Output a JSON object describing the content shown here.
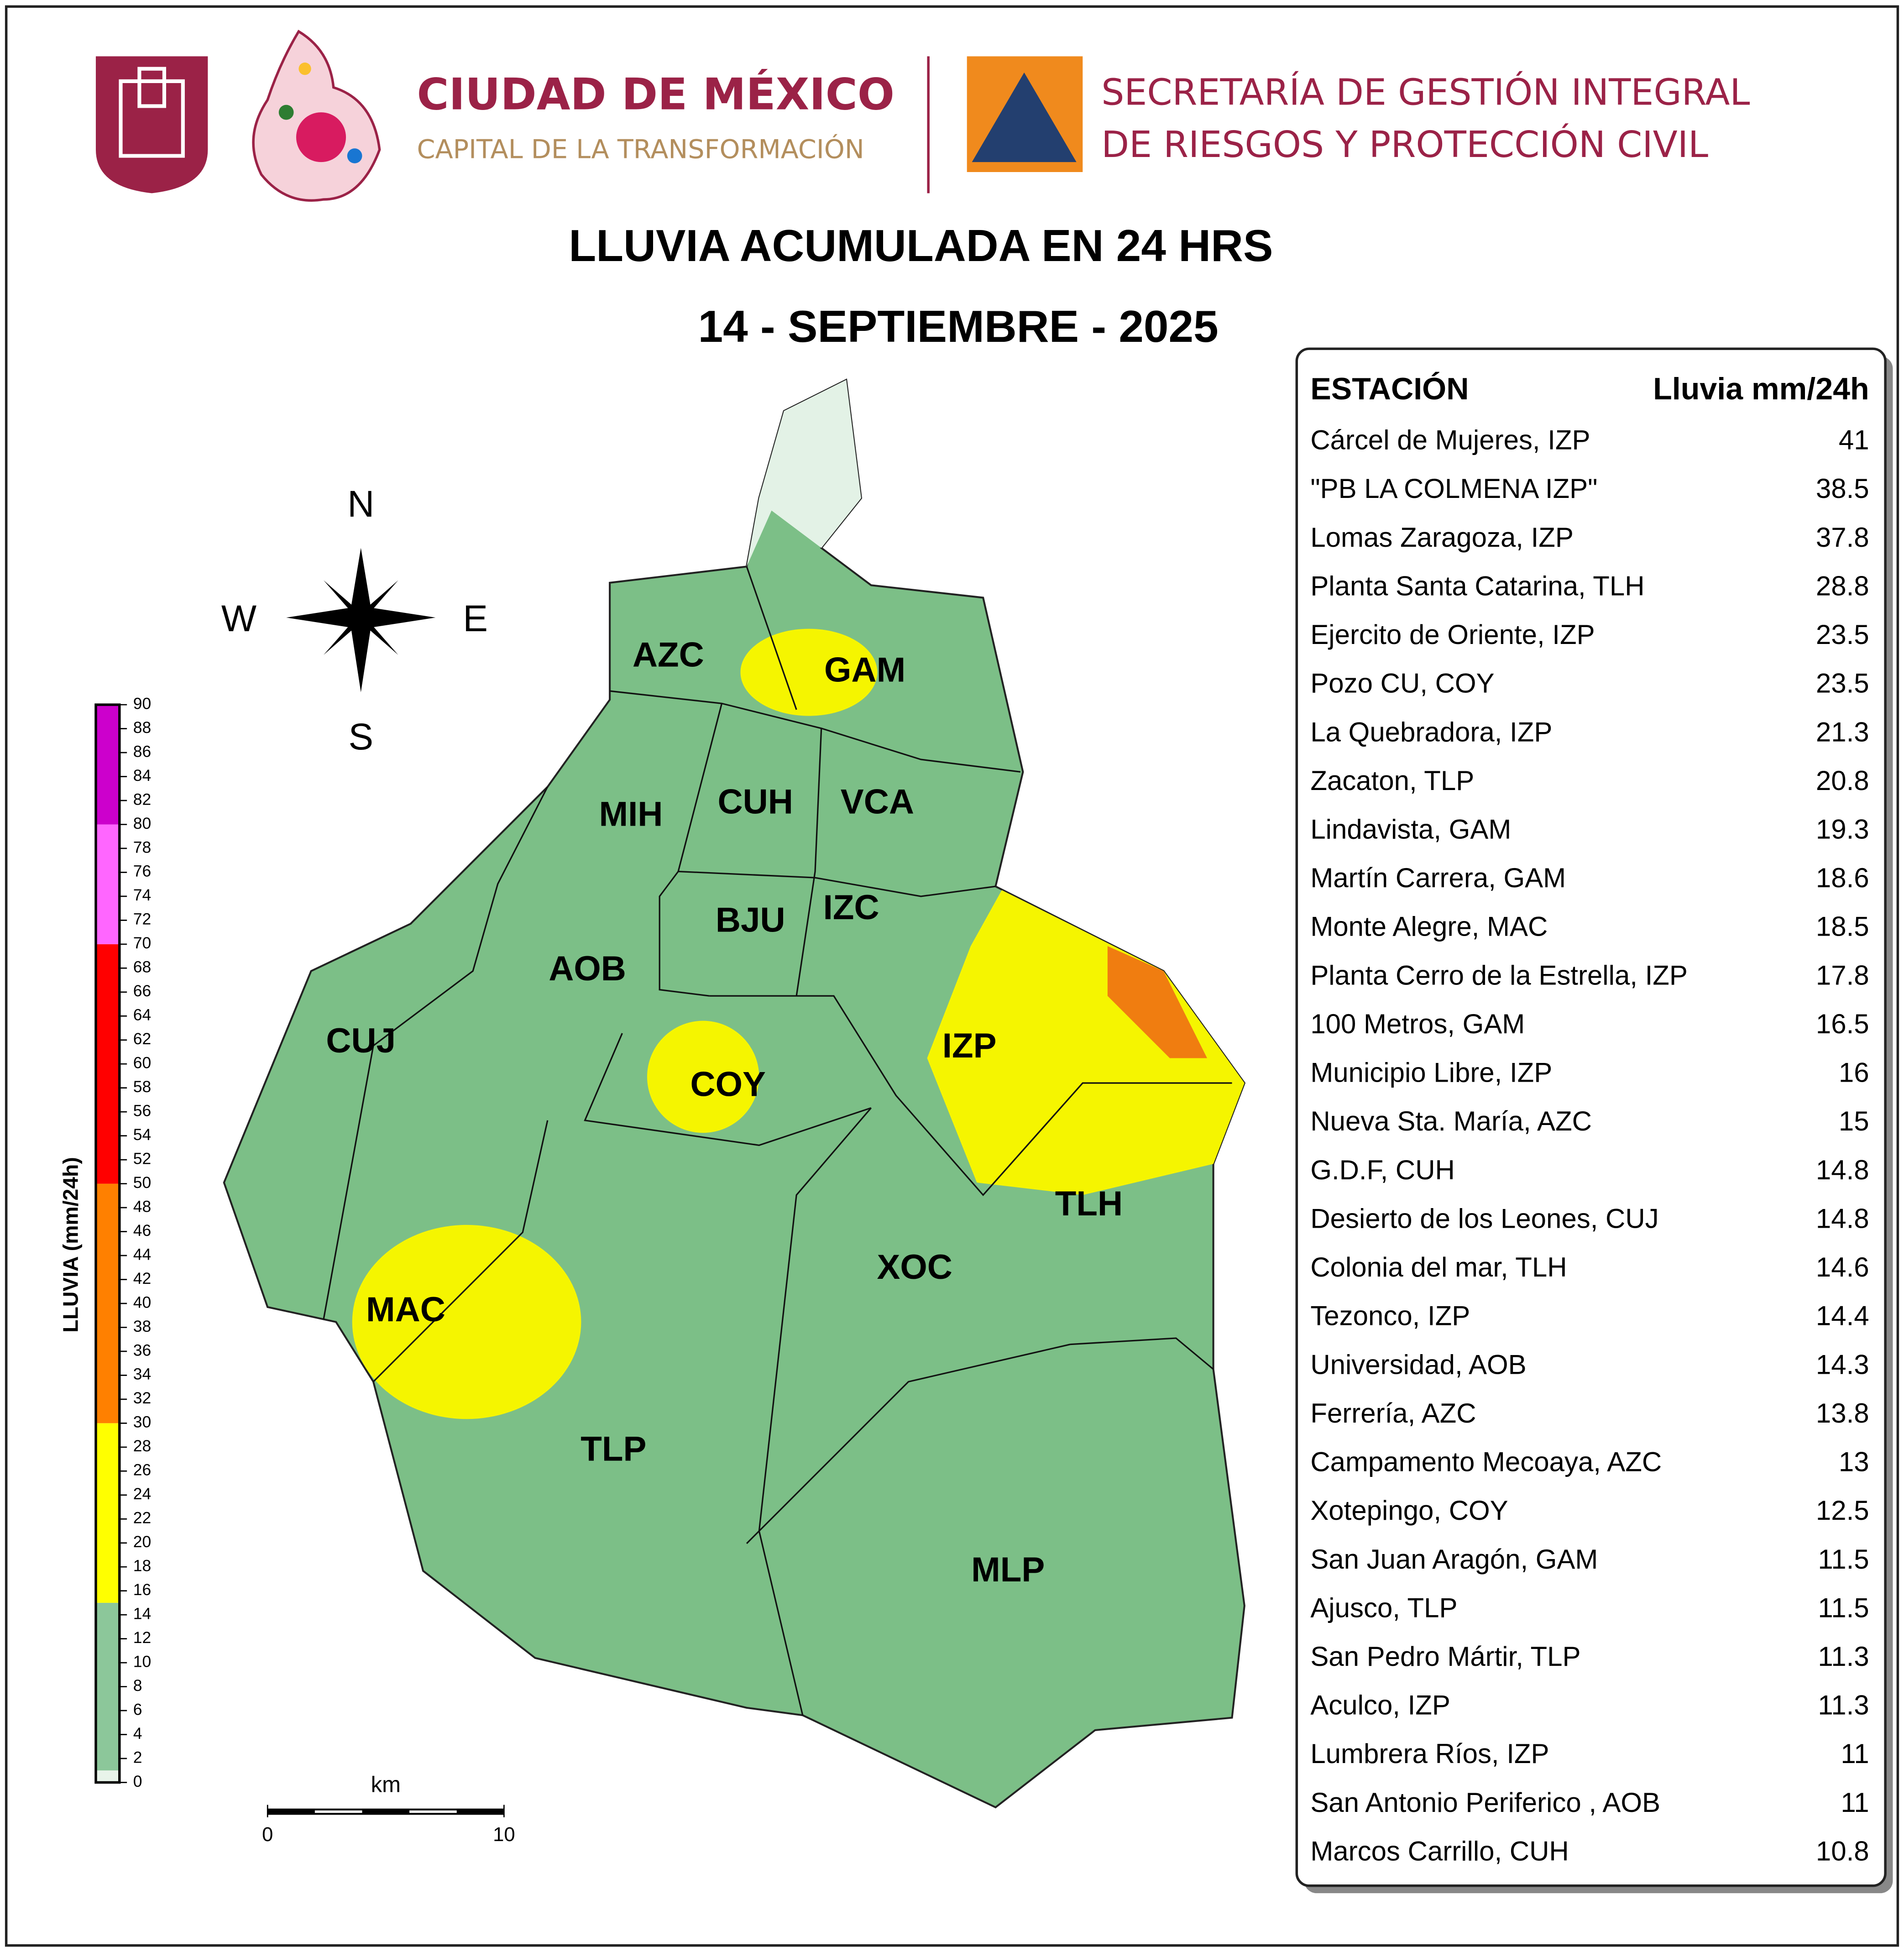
{
  "header": {
    "city": "CIUDAD DE MÉXICO",
    "city_subtitle": "CAPITAL DE LA TRANSFORMACIÓN",
    "agency": [
      "SECRETARÍA DE GESTIÓN INTEGRAL",
      "DE RIESGOS Y PROTECCIÓN CIVIL"
    ]
  },
  "title": "LLUVIA ACUMULADA EN 24 HRS",
  "date": "14 - SEPTIEMBRE - 2025",
  "table": {
    "headers": [
      "ESTACIÓN",
      "Lluvia mm/24h"
    ],
    "rows": [
      [
        "Cárcel de Mujeres, IZP",
        41
      ],
      [
        "\"PB LA COLMENA   IZP\"",
        38.5
      ],
      [
        "Lomas Zaragoza, IZP",
        37.8
      ],
      [
        "Planta Santa Catarina, TLH",
        28.8
      ],
      [
        "Ejercito de Oriente, IZP",
        23.5
      ],
      [
        "Pozo CU, COY",
        23.5
      ],
      [
        "La Quebradora, IZP",
        21.3
      ],
      [
        "Zacaton, TLP",
        20.8
      ],
      [
        "Lindavista, GAM",
        19.3
      ],
      [
        "Martín Carrera, GAM",
        18.6
      ],
      [
        "Monte Alegre, MAC",
        18.5
      ],
      [
        "Planta Cerro de la Estrella, IZP",
        17.8
      ],
      [
        "100 Metros, GAM",
        16.5
      ],
      [
        "Municipio Libre, IZP",
        16
      ],
      [
        "Nueva Sta. María, AZC",
        15
      ],
      [
        "G.D.F, CUH",
        14.8
      ],
      [
        "Desierto de los Leones, CUJ",
        14.8
      ],
      [
        "Colonia del mar, TLH",
        14.6
      ],
      [
        "Tezonco, IZP",
        14.4
      ],
      [
        "Universidad, AOB",
        14.3
      ],
      [
        "Ferrería, AZC",
        13.8
      ],
      [
        "Campamento Mecoaya, AZC",
        13
      ],
      [
        "Xotepingo, COY",
        12.5
      ],
      [
        "San Juan Aragón, GAM",
        11.5
      ],
      [
        "Ajusco, TLP",
        11.5
      ],
      [
        "San Pedro Mártir, TLP",
        11.3
      ],
      [
        "Aculco, IZP",
        11.3
      ],
      [
        "Lumbrera Ríos, IZP",
        11
      ],
      [
        "San Antonio Periferico  , AOB",
        11
      ],
      [
        "Marcos Carrillo, CUH",
        10.8
      ]
    ]
  },
  "map": {
    "compass": [
      "N",
      "W",
      "E",
      "S"
    ],
    "boroughs": [
      "AZC",
      "GAM",
      "MIH",
      "CUH",
      "VCA",
      "BJU",
      "IZC",
      "AOB",
      "CUJ",
      "IZP",
      "COY",
      "TLH",
      "XOC",
      "MAC",
      "TLP",
      "MLP"
    ],
    "scale_bar": {
      "unit": "km",
      "ticks": [
        0,
        10
      ]
    }
  },
  "legend": {
    "label": "LLUVIA (mm/24h)",
    "ticks": [
      0,
      2,
      4,
      6,
      8,
      10,
      12,
      14,
      16,
      18,
      20,
      22,
      24,
      26,
      28,
      30,
      32,
      34,
      36,
      38,
      40,
      42,
      44,
      46,
      48,
      50,
      52,
      54,
      56,
      58,
      60,
      62,
      64,
      66,
      68,
      70,
      72,
      74,
      76,
      78,
      80,
      82,
      84,
      86,
      88,
      90
    ],
    "bands": [
      {
        "from": 0,
        "to": 1,
        "color": "#e8f4ea"
      },
      {
        "from": 1,
        "to": 15,
        "color": "#8cc79a"
      },
      {
        "from": 15,
        "to": 30,
        "color": "#ffff00"
      },
      {
        "from": 30,
        "to": 50,
        "color": "#ff8000"
      },
      {
        "from": 50,
        "to": 70,
        "color": "#ff0000"
      },
      {
        "from": 70,
        "to": 80,
        "color": "#ff66ff"
      },
      {
        "from": 80,
        "to": 90,
        "color": "#cc00cc"
      }
    ]
  }
}
